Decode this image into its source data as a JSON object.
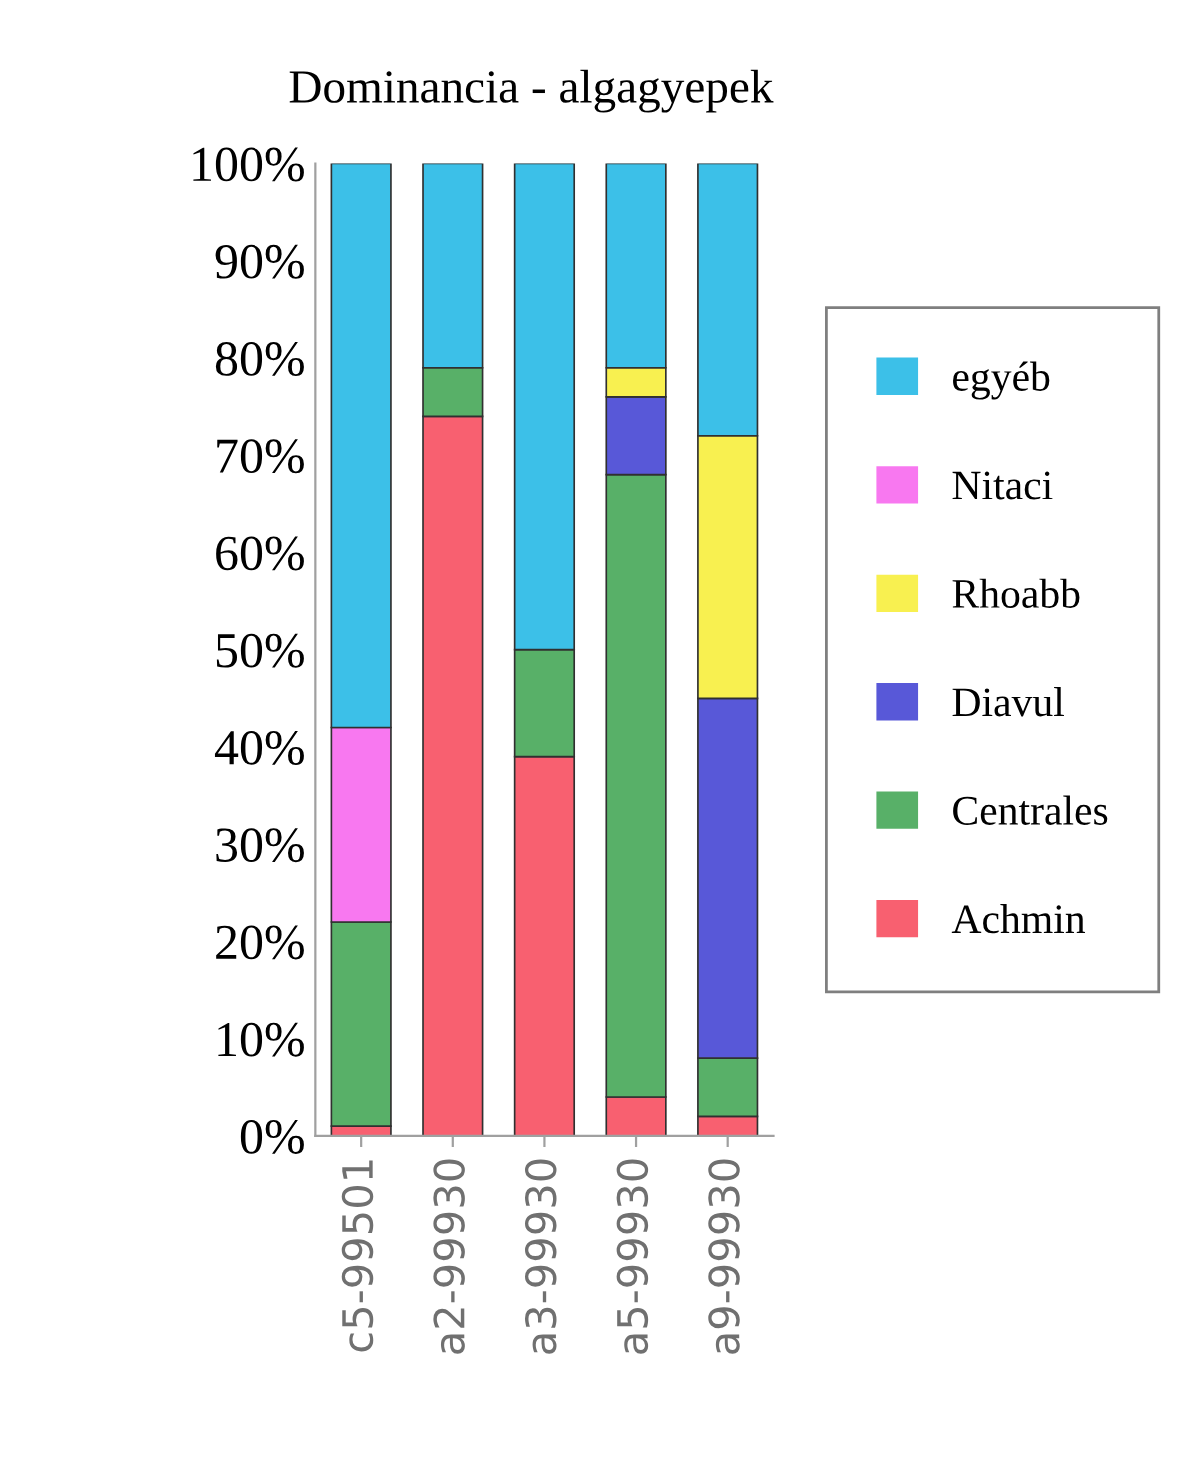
{
  "chart_data": {
    "type": "bar",
    "title": "Dominancia - algagyepek",
    "stacked": true,
    "categories": [
      "c5-99501",
      "a2-99930",
      "a3-99930",
      "a5-99930",
      "a9-99930"
    ],
    "series": [
      {
        "name": "Achmin",
        "color": "#f86070",
        "values": [
          1,
          74,
          39,
          4,
          2
        ]
      },
      {
        "name": "Centrales",
        "color": "#58b068",
        "values": [
          21,
          5,
          11,
          64,
          6
        ]
      },
      {
        "name": "Diavul",
        "color": "#5858d8",
        "values": [
          null,
          null,
          null,
          8,
          37
        ]
      },
      {
        "name": "Rhoabb",
        "color": "#f8f050",
        "values": [
          null,
          null,
          null,
          3,
          27
        ]
      },
      {
        "name": "Nitaci",
        "color": "#f878f0",
        "values": [
          20,
          null,
          null,
          null,
          null
        ]
      },
      {
        "name": "egyéb",
        "color": "#3cc0e8",
        "values": [
          58,
          21,
          50,
          21,
          28
        ]
      }
    ],
    "ylim": [
      0,
      100
    ],
    "yticks": [
      {
        "value": 0,
        "label": "0%"
      },
      {
        "value": 10,
        "label": "10%"
      },
      {
        "value": 20,
        "label": "20%"
      },
      {
        "value": 30,
        "label": "30%"
      },
      {
        "value": 40,
        "label": "40%"
      },
      {
        "value": 50,
        "label": "50%"
      },
      {
        "value": 60,
        "label": "60%"
      },
      {
        "value": 70,
        "label": "70%"
      },
      {
        "value": 80,
        "label": "80%"
      },
      {
        "value": 90,
        "label": "90%"
      },
      {
        "value": 100,
        "label": "100%"
      }
    ],
    "grid": false,
    "legend": "right"
  }
}
